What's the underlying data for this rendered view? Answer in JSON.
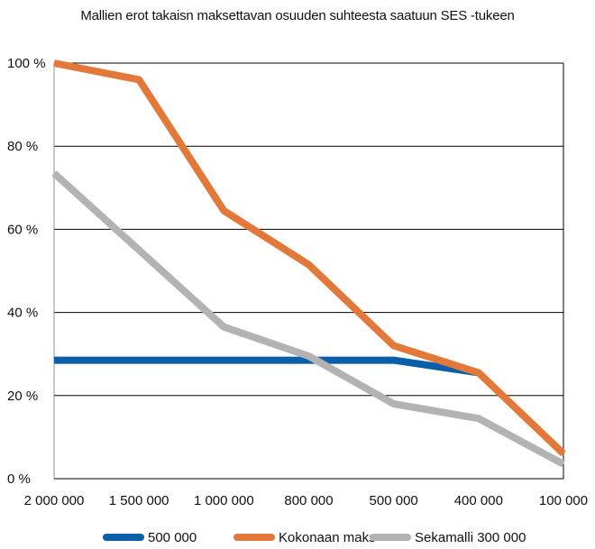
{
  "chart_data": {
    "type": "line",
    "title": "Mallien erot  takaisn  maksettavan  osuuden  suhteesta saatuun  SES -tukeen",
    "categories": [
      "2 000 000",
      "1 500 000",
      "1 000 000",
      "800 000",
      "500 000",
      "400 000",
      "100 000"
    ],
    "y_ticks": [
      "0 %",
      "20 %",
      "40 %",
      "60 %",
      "80 %",
      "100 %"
    ],
    "ylim": [
      0,
      100
    ],
    "y_unit": "%",
    "grid": true,
    "legend_position": "bottom",
    "series": [
      {
        "name": "500 000",
        "color": "#0a5fa8",
        "values": [
          28.5,
          28.5,
          28.5,
          28.5,
          28.5,
          25.5,
          null
        ]
      },
      {
        "name": "Kokonaan maks",
        "color": "#e2783a",
        "values": [
          100,
          96,
          64.5,
          51.5,
          32,
          25.5,
          6
        ]
      },
      {
        "name": "Sekamalli 300 000",
        "color": "#b3b3b3",
        "values": [
          73.5,
          55,
          36.5,
          29.5,
          18,
          14.5,
          3.5
        ]
      }
    ]
  }
}
